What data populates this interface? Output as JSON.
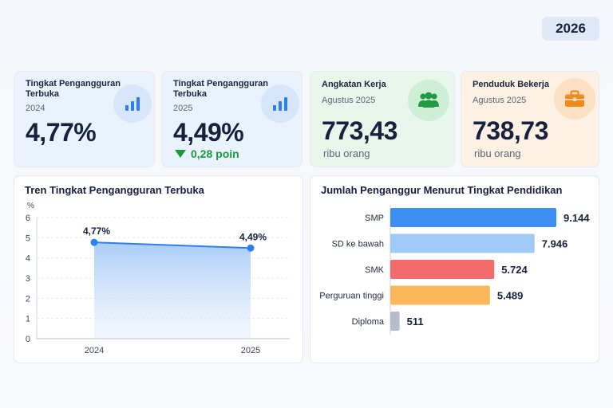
{
  "year_badge": "2026",
  "cards": [
    {
      "title": "Tingkat Pengangguran Terbuka",
      "subtitle": "2024",
      "value": "4,77%",
      "icon": "bar-chart-icon"
    },
    {
      "title": "Tingkat Pengangguran Terbuka",
      "subtitle": "2025",
      "value": "4,49%",
      "icon": "bar-chart-icon",
      "delta": "0,28 poin",
      "delta_direction": "down"
    },
    {
      "title": "Angkatan Kerja",
      "subtitle": "Agustus 2025",
      "value": "773,43",
      "unit": "ribu orang",
      "icon": "people-icon"
    },
    {
      "title": "Penduduk Bekerja",
      "subtitle": "Agustus 2025",
      "value": "738,73",
      "unit": "ribu orang",
      "icon": "briefcase-icon"
    }
  ],
  "colors": {
    "card_blue_bg": "#eaf2fd",
    "card_green_bg": "#e9f6ec",
    "card_orange_bg": "#fdf1e4",
    "accent_blue": "#2d7ff0",
    "green": "#1a9a3e",
    "orange": "#f08a1c"
  },
  "chart_data": [
    {
      "type": "line",
      "title": "Tren Tingkat Pengangguran Terbuka",
      "ylabel": "%",
      "x": [
        "2024",
        "2025"
      ],
      "values": [
        4.77,
        4.49
      ],
      "data_labels": [
        "4,77%",
        "4,49%"
      ],
      "ylim": [
        0,
        6
      ],
      "yticks": [
        "0",
        "1",
        "2",
        "3",
        "4",
        "5",
        "6"
      ],
      "grid": true,
      "fill": "area"
    },
    {
      "type": "bar",
      "orientation": "horizontal",
      "title": "Jumlah Penganggur Menurut Tingkat Pendidikan",
      "categories": [
        "SMP",
        "SD ke bawah",
        "SMK",
        "Perguruan tinggi",
        "Diploma"
      ],
      "values": [
        9144,
        7946,
        5724,
        5489,
        511
      ],
      "data_labels": [
        "9.144",
        "7.946",
        "5.724",
        "5.489",
        "511"
      ],
      "colors": [
        "#3d8ef2",
        "#9fc9f7",
        "#f36b6b",
        "#fbb85a",
        "#b5bdca"
      ]
    }
  ]
}
